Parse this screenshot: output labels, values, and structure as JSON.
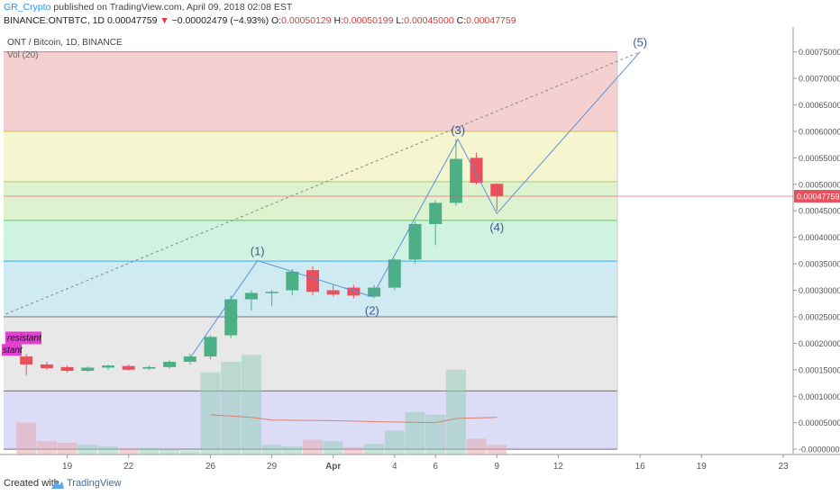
{
  "header": {
    "author": "GR_Crypto",
    "published_text": " published on TradingView.com, April 09, 2018 02:08 EST",
    "symbol_line": "BINANCE:ONTBTC, 1D",
    "price": "0.00047759",
    "change": "−0.00002479 (−4.93%)",
    "o_label": "O:",
    "o": "0.00050129",
    "h_label": "H:",
    "h": "0.00050199",
    "l_label": "L:",
    "l": "0.00045000",
    "c_label": "C:",
    "c": "0.00047759"
  },
  "legend": {
    "title": "ONT / Bitcoin, 1D, BINANCE",
    "vol": "Vol (20)"
  },
  "footer": {
    "created": "Created with",
    "brand": "TradingView"
  },
  "colors": {
    "up": "#4caf86",
    "down": "#e8505b",
    "wave_line": "#5b8fd6",
    "last_price_bg": "#e8505b"
  },
  "chart_data": {
    "type": "candlestick",
    "symbol": "ONTBTC",
    "ylim": [
      -1e-05,
      0.00078
    ],
    "y_ticks": [
      "0.00075000",
      "0.00070000",
      "0.00065000",
      "0.00060000",
      "0.00055000",
      "0.00050000",
      "0.00045000",
      "0.00040000",
      "0.00035000",
      "0.00030000",
      "0.00025000",
      "0.00020000",
      "0.00015000",
      "0.00010000",
      "0.00005000",
      "-0.00000000"
    ],
    "x_ticks": [
      {
        "label": "19",
        "day": -12
      },
      {
        "label": "22",
        "day": -9
      },
      {
        "label": "26",
        "day": -5
      },
      {
        "label": "29",
        "day": -2
      },
      {
        "label": "Apr",
        "day": 1
      },
      {
        "label": "4",
        "day": 4
      },
      {
        "label": "6",
        "day": 6
      },
      {
        "label": "9",
        "day": 9
      },
      {
        "label": "12",
        "day": 12
      },
      {
        "label": "16",
        "day": 16
      },
      {
        "label": "19",
        "day": 19
      },
      {
        "label": "23",
        "day": 23
      }
    ],
    "candles": [
      {
        "d": -14,
        "o": 0.000175,
        "h": 0.00018,
        "l": 0.00014,
        "c": 0.00016
      },
      {
        "d": -13,
        "o": 0.00016,
        "h": 0.000165,
        "l": 0.00015,
        "c": 0.000153
      },
      {
        "d": -12,
        "o": 0.000155,
        "h": 0.000158,
        "l": 0.000145,
        "c": 0.000148
      },
      {
        "d": -11,
        "o": 0.000148,
        "h": 0.000156,
        "l": 0.000146,
        "c": 0.000154
      },
      {
        "d": -10,
        "o": 0.000154,
        "h": 0.00016,
        "l": 0.00015,
        "c": 0.000158
      },
      {
        "d": -9,
        "o": 0.000157,
        "h": 0.00016,
        "l": 0.000148,
        "c": 0.00015
      },
      {
        "d": -8,
        "o": 0.000152,
        "h": 0.000158,
        "l": 0.00015,
        "c": 0.000155
      },
      {
        "d": -7,
        "o": 0.000155,
        "h": 0.000168,
        "l": 0.000152,
        "c": 0.000165
      },
      {
        "d": -6,
        "o": 0.000165,
        "h": 0.00018,
        "l": 0.00016,
        "c": 0.000175
      },
      {
        "d": -5,
        "o": 0.000175,
        "h": 0.000215,
        "l": 0.00017,
        "c": 0.000212
      },
      {
        "d": -4,
        "o": 0.000215,
        "h": 0.00029,
        "l": 0.00021,
        "c": 0.000283
      },
      {
        "d": -3,
        "o": 0.000283,
        "h": 0.0003,
        "l": 0.000262,
        "c": 0.000295
      },
      {
        "d": -2,
        "o": 0.000295,
        "h": 0.0003,
        "l": 0.00027,
        "c": 0.000297
      },
      {
        "d": -1,
        "o": 0.0003,
        "h": 0.00034,
        "l": 0.00029,
        "c": 0.000335
      },
      {
        "d": 0,
        "o": 0.000338,
        "h": 0.000345,
        "l": 0.00029,
        "c": 0.000297
      },
      {
        "d": 1,
        "o": 0.0003,
        "h": 0.00031,
        "l": 0.000288,
        "c": 0.000292
      },
      {
        "d": 2,
        "o": 0.000305,
        "h": 0.00031,
        "l": 0.000285,
        "c": 0.00029
      },
      {
        "d": 3,
        "o": 0.000288,
        "h": 0.00031,
        "l": 0.000285,
        "c": 0.000305
      },
      {
        "d": 4,
        "o": 0.000305,
        "h": 0.00036,
        "l": 0.0003,
        "c": 0.000358
      },
      {
        "d": 5,
        "o": 0.000358,
        "h": 0.00043,
        "l": 0.00035,
        "c": 0.000425
      },
      {
        "d": 6,
        "o": 0.000425,
        "h": 0.00047,
        "l": 0.000385,
        "c": 0.000465
      },
      {
        "d": 7,
        "o": 0.000465,
        "h": 0.000585,
        "l": 0.00046,
        "c": 0.000548
      },
      {
        "d": 8,
        "o": 0.00055,
        "h": 0.00056,
        "l": 0.0005,
        "c": 0.000503
      },
      {
        "d": 9,
        "o": 0.000501,
        "h": 0.000502,
        "l": 0.00045,
        "c": 0.000478
      }
    ],
    "volumes": [
      {
        "d": -14,
        "v": 6e-05,
        "up": false
      },
      {
        "d": -13,
        "v": 2.5e-05,
        "up": false
      },
      {
        "d": -12,
        "v": 2.2e-05,
        "up": false
      },
      {
        "d": -11,
        "v": 1.8e-05,
        "up": true
      },
      {
        "d": -10,
        "v": 1.5e-05,
        "up": true
      },
      {
        "d": -9,
        "v": 1.2e-05,
        "up": false
      },
      {
        "d": -8,
        "v": 1.2e-05,
        "up": true
      },
      {
        "d": -7,
        "v": 1e-05,
        "up": true
      },
      {
        "d": -6,
        "v": 8e-06,
        "up": true
      },
      {
        "d": -5,
        "v": 0.000155,
        "up": true
      },
      {
        "d": -4,
        "v": 0.000175,
        "up": true
      },
      {
        "d": -3,
        "v": 0.000188,
        "up": true
      },
      {
        "d": -2,
        "v": 1.8e-05,
        "up": true
      },
      {
        "d": -1,
        "v": 1.5e-05,
        "up": true
      },
      {
        "d": 0,
        "v": 2.8e-05,
        "up": false
      },
      {
        "d": 1,
        "v": 2.5e-05,
        "up": true
      },
      {
        "d": 2,
        "v": 1.4e-05,
        "up": false
      },
      {
        "d": 3,
        "v": 2e-05,
        "up": true
      },
      {
        "d": 4,
        "v": 4.5e-05,
        "up": true
      },
      {
        "d": 5,
        "v": 8e-05,
        "up": true
      },
      {
        "d": 6,
        "v": 7.5e-05,
        "up": true
      },
      {
        "d": 7,
        "v": 0.00016,
        "up": true
      },
      {
        "d": 8,
        "v": 3e-05,
        "up": false
      },
      {
        "d": 9,
        "v": 1.8e-05,
        "up": false
      }
    ],
    "volume_ma": [
      {
        "d": -5,
        "v": 6.5e-05
      },
      {
        "d": -3,
        "v": 6e-05
      },
      {
        "d": -2,
        "v": 5.5e-05
      },
      {
        "d": 1,
        "v": 5.4e-05
      },
      {
        "d": 3,
        "v": 5.2e-05
      },
      {
        "d": 6,
        "v": 5e-05
      },
      {
        "d": 7,
        "v": 5.8e-05
      },
      {
        "d": 9,
        "v": 6e-05
      }
    ],
    "wave_labels": [
      {
        "label": "(1)",
        "d": -2.7,
        "y": 0.000356
      },
      {
        "label": "(2)",
        "d": 2.9,
        "y": 0.000288
      },
      {
        "label": "(3)",
        "d": 7.1,
        "y": 0.000585
      },
      {
        "label": "(4)",
        "d": 9,
        "y": 0.000445
      },
      {
        "label": "(5)",
        "d": 16,
        "y": 0.00075
      }
    ],
    "wave_points": [
      {
        "d": -6,
        "y": 0.000172
      },
      {
        "d": -2.7,
        "y": 0.000356
      },
      {
        "d": 2.9,
        "y": 0.000288
      },
      {
        "d": 7.1,
        "y": 0.000585
      },
      {
        "d": 9,
        "y": 0.000445
      },
      {
        "d": 16,
        "y": 0.00075
      }
    ],
    "trend_line": {
      "d1": -15,
      "y1": 0.000255,
      "d2": 16,
      "y2": 0.00075
    },
    "fib_levels": [
      0.00075,
      0.0006,
      0.000505,
      0.000432,
      0.000355,
      0.00025,
      0.00011,
      0.0
    ],
    "fib_colors": [
      "#f2c8c8",
      "#f3f3c8",
      "#d9f0c8",
      "#c8f0da",
      "#c8e6f0",
      "#e4e4e4",
      "#d6d6f4"
    ],
    "fib_line_colors": [
      "#d9534f",
      "#c6b846",
      "#8bc34a",
      "#4caf50",
      "#2196f3",
      "#555555",
      "#555555",
      "#555555"
    ],
    "last_price": 0.00047759,
    "last_price_label": "0.00047759",
    "annotations": [
      "resistant",
      "stant"
    ]
  }
}
